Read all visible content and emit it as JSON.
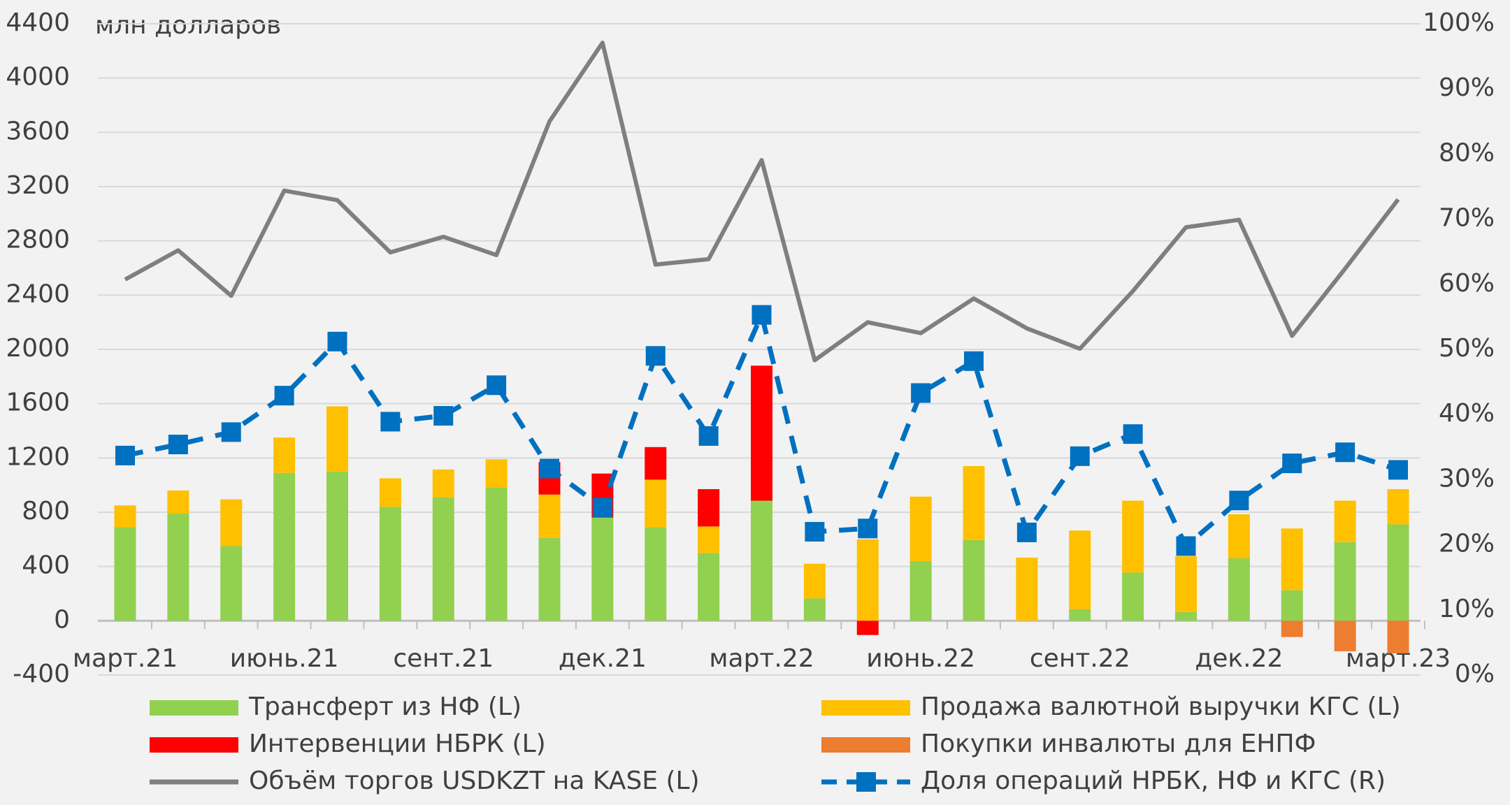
{
  "chart_data": {
    "type": "bar",
    "y_axis_label": "млн долларов",
    "categories": [
      "март.21",
      null,
      null,
      "июнь.21",
      null,
      null,
      "сент.21",
      null,
      null,
      "дек.21",
      null,
      null,
      "март.22",
      null,
      null,
      "июнь.22",
      null,
      null,
      "сент.22",
      null,
      null,
      "дек.22",
      null,
      null,
      "март.23"
    ],
    "ylim": [
      -400,
      4400
    ],
    "yticks": [
      -400,
      0,
      400,
      800,
      1200,
      1600,
      2000,
      2400,
      2800,
      3200,
      3600,
      4000,
      4400
    ],
    "y2lim": [
      0,
      100
    ],
    "y2ticks": [
      {
        "value": 0,
        "label": "0%"
      },
      {
        "value": 10,
        "label": "10%"
      },
      {
        "value": 20,
        "label": "20%"
      },
      {
        "value": 30,
        "label": "30%"
      },
      {
        "value": 40,
        "label": "40%"
      },
      {
        "value": 50,
        "label": "50%"
      },
      {
        "value": 60,
        "label": "60%"
      },
      {
        "value": 70,
        "label": "70%"
      },
      {
        "value": 80,
        "label": "80%"
      },
      {
        "value": 90,
        "label": "90%"
      },
      {
        "value": 100,
        "label": "100%"
      }
    ],
    "grid": true,
    "series": [
      {
        "name": "Трансферт из НФ (L)",
        "type": "bar",
        "color": "#92d050",
        "values": [
          690,
          790,
          550,
          1090,
          1100,
          840,
          910,
          980,
          610,
          760,
          690,
          500,
          885,
          165,
          0,
          440,
          595,
          0,
          85,
          355,
          65,
          460,
          225,
          580,
          710
        ]
      },
      {
        "name": "Продажа валютной выручки КГС (L)",
        "type": "bar",
        "color": "#ffc000",
        "values": [
          160,
          170,
          345,
          260,
          480,
          210,
          205,
          210,
          320,
          0,
          350,
          195,
          0,
          255,
          600,
          475,
          545,
          465,
          580,
          530,
          410,
          325,
          455,
          305,
          260
        ]
      },
      {
        "name": "Интервенции НБРК (L)",
        "type": "bar",
        "color": "#ff0000",
        "values": [
          0,
          0,
          0,
          0,
          0,
          0,
          0,
          0,
          240,
          325,
          240,
          275,
          995,
          0,
          -105,
          0,
          0,
          0,
          0,
          0,
          0,
          0,
          0,
          0,
          0
        ]
      },
      {
        "name": "Покупки инвалюты для ЕНПФ",
        "type": "bar",
        "color": "#ed7d31",
        "values": [
          0,
          0,
          0,
          0,
          0,
          0,
          0,
          0,
          0,
          0,
          0,
          0,
          0,
          0,
          0,
          0,
          0,
          0,
          0,
          0,
          0,
          0,
          -120,
          -225,
          -240
        ]
      },
      {
        "name": "Объём торгов USDKZT на KASE (L)",
        "type": "line",
        "color": "#7f7f7f",
        "values": [
          2515,
          2730,
          2395,
          3170,
          3100,
          2715,
          2830,
          2695,
          3680,
          4260,
          2625,
          2665,
          3395,
          1920,
          2200,
          2120,
          2375,
          2155,
          2005,
          2430,
          2900,
          2955,
          2100,
          2595,
          3105
        ]
      },
      {
        "name": "Доля операций НРБК, НФ и КГС (R)",
        "type": "line",
        "axis": "y2",
        "dashed": true,
        "marker": "square",
        "color": "#0070c0",
        "values": [
          33.7,
          35.4,
          37.3,
          42.9,
          51.2,
          38.9,
          39.8,
          44.5,
          31.7,
          25.7,
          49.0,
          36.7,
          55.3,
          22.0,
          22.5,
          43.3,
          48.2,
          21.9,
          33.6,
          37.0,
          19.8,
          26.8,
          32.5,
          34.2,
          31.5
        ]
      }
    ]
  }
}
